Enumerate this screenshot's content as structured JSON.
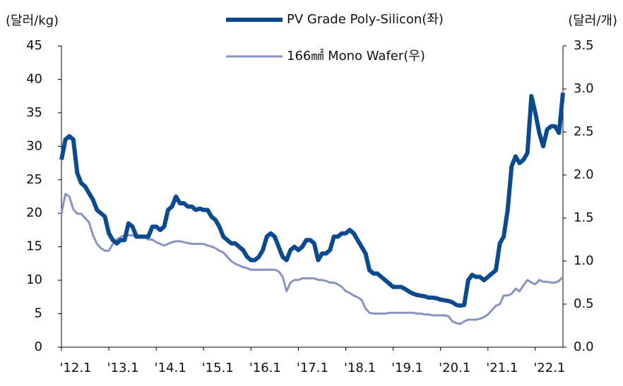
{
  "chart_data": {
    "type": "line",
    "y_label": "(달러/kg)",
    "y2_label": "(달러/개)",
    "categories": [
      "'12.1",
      null,
      null,
      null,
      null,
      null,
      null,
      null,
      null,
      null,
      null,
      null,
      "'13.1",
      null,
      null,
      null,
      null,
      null,
      null,
      null,
      null,
      null,
      null,
      null,
      "'14.1",
      null,
      null,
      null,
      null,
      null,
      null,
      null,
      null,
      null,
      null,
      null,
      "'15.1",
      null,
      null,
      null,
      null,
      null,
      null,
      null,
      null,
      null,
      null,
      null,
      "'16.1",
      null,
      null,
      null,
      null,
      null,
      null,
      null,
      null,
      null,
      null,
      null,
      "'17.1",
      null,
      null,
      null,
      null,
      null,
      null,
      null,
      null,
      null,
      null,
      null,
      "'18.1",
      null,
      null,
      null,
      null,
      null,
      null,
      null,
      null,
      null,
      null,
      null,
      "'19.1",
      null,
      null,
      null,
      null,
      null,
      null,
      null,
      null,
      null,
      null,
      null,
      "'20.1",
      null,
      null,
      null,
      null,
      null,
      null,
      null,
      null,
      null,
      null,
      null,
      "'21.1",
      null,
      null,
      null,
      null,
      null,
      null,
      null,
      null,
      null,
      null,
      null,
      "'22.1",
      null,
      null,
      null,
      null,
      null,
      null,
      null
    ],
    "series": [
      {
        "name": "PV Grade Poly-Silicon(좌)",
        "color": "#0b4a8e",
        "values": [
          28,
          31,
          31.5,
          31,
          26,
          24.5,
          24,
          23,
          22,
          20.5,
          20,
          19.5,
          17,
          16,
          15.5,
          16,
          16,
          18.5,
          18,
          16.5,
          16.5,
          16.5,
          16.5,
          18,
          18,
          17.5,
          18,
          20.5,
          21,
          22.5,
          21.5,
          21.5,
          21,
          21,
          20.5,
          20.7,
          20.5,
          20.5,
          19.5,
          19,
          18,
          16.5,
          16,
          15.5,
          15.5,
          15,
          14.5,
          13.5,
          13,
          13,
          13.5,
          14.5,
          16.5,
          17,
          16.5,
          15,
          13.5,
          13,
          14.5,
          15,
          14.5,
          15,
          16,
          16,
          15.5,
          13,
          14,
          14,
          14.5,
          16.5,
          16.5,
          17,
          17,
          17.5,
          17,
          16,
          15,
          14,
          11.5,
          11,
          11,
          10.5,
          10,
          9.5,
          9,
          9,
          9,
          8.7,
          8.3,
          8,
          7.8,
          7.7,
          7.6,
          7.4,
          7.4,
          7.3,
          7.1,
          7,
          6.9,
          6.7,
          6.3,
          6.2,
          6.3,
          10,
          10.8,
          10.5,
          10.5,
          10,
          10.5,
          11,
          11.5,
          15.5,
          16.5,
          20.5,
          27,
          28.5,
          27.5,
          28,
          29,
          37.5,
          35,
          32,
          30,
          32.5,
          33,
          33,
          32,
          38
        ]
      },
      {
        "name": "166㎟ Mono Wafer(우)",
        "color": "#8793c2",
        "axis": "y2",
        "values": [
          1.55,
          1.78,
          1.75,
          1.6,
          1.55,
          1.55,
          1.5,
          1.45,
          1.3,
          1.2,
          1.15,
          1.12,
          1.12,
          1.2,
          1.25,
          1.28,
          1.3,
          1.3,
          1.3,
          1.28,
          1.3,
          1.28,
          1.25,
          1.25,
          1.22,
          1.2,
          1.18,
          1.2,
          1.22,
          1.23,
          1.23,
          1.22,
          1.21,
          1.2,
          1.2,
          1.2,
          1.2,
          1.18,
          1.17,
          1.15,
          1.12,
          1.1,
          1.05,
          1.0,
          0.97,
          0.95,
          0.93,
          0.92,
          0.9,
          0.9,
          0.9,
          0.9,
          0.9,
          0.9,
          0.9,
          0.88,
          0.82,
          0.65,
          0.75,
          0.78,
          0.78,
          0.8,
          0.8,
          0.8,
          0.8,
          0.78,
          0.78,
          0.77,
          0.75,
          0.75,
          0.73,
          0.7,
          0.65,
          0.63,
          0.6,
          0.58,
          0.55,
          0.45,
          0.4,
          0.39,
          0.39,
          0.39,
          0.39,
          0.4,
          0.4,
          0.4,
          0.4,
          0.4,
          0.4,
          0.4,
          0.39,
          0.39,
          0.38,
          0.38,
          0.37,
          0.37,
          0.37,
          0.37,
          0.36,
          0.3,
          0.28,
          0.27,
          0.3,
          0.32,
          0.32,
          0.32,
          0.33,
          0.35,
          0.38,
          0.43,
          0.48,
          0.5,
          0.6,
          0.6,
          0.62,
          0.68,
          0.65,
          0.72,
          0.78,
          0.75,
          0.73,
          0.78,
          0.76,
          0.76,
          0.75,
          0.75,
          0.77,
          0.82
        ]
      }
    ],
    "ylim": [
      0,
      45
    ],
    "yticks": [
      0,
      5,
      10,
      15,
      20,
      25,
      30,
      35,
      40,
      45
    ],
    "y2lim": [
      0,
      3.5
    ],
    "y2ticks": [
      {
        "value": 0,
        "label": "0.0"
      },
      0.5,
      {
        "value": 1,
        "label": "1.0"
      },
      1.5,
      {
        "value": 2,
        "label": "2.0"
      },
      2.5,
      {
        "value": 3,
        "label": "3.0"
      },
      3.5
    ]
  }
}
